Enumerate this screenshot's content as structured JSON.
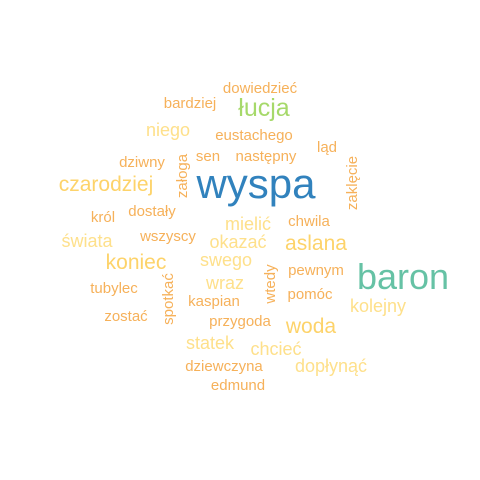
{
  "colors": {
    "dark_blue": "#3182bd",
    "teal": "#66c2a5",
    "light_green": "#a6d96a",
    "gold": "#fdd36a",
    "pale_yellow": "#fee08b",
    "orange": "#f6b15a"
  },
  "words": [
    {
      "text": "wyspa",
      "color": "dark_blue"
    },
    {
      "text": "baron",
      "color": "teal"
    },
    {
      "text": "łucja",
      "color": "light_green"
    },
    {
      "text": "czarodziej",
      "color": "gold"
    },
    {
      "text": "koniec",
      "color": "gold"
    },
    {
      "text": "woda",
      "color": "gold"
    },
    {
      "text": "aslana",
      "color": "gold"
    },
    {
      "text": "mielić",
      "color": "pale_yellow"
    },
    {
      "text": "okazać",
      "color": "pale_yellow"
    },
    {
      "text": "swego",
      "color": "pale_yellow"
    },
    {
      "text": "wraz",
      "color": "pale_yellow"
    },
    {
      "text": "niego",
      "color": "pale_yellow"
    },
    {
      "text": "świata",
      "color": "pale_yellow"
    },
    {
      "text": "kolejny",
      "color": "pale_yellow"
    },
    {
      "text": "chcieć",
      "color": "pale_yellow"
    },
    {
      "text": "statek",
      "color": "pale_yellow"
    },
    {
      "text": "dopłynąć",
      "color": "pale_yellow"
    },
    {
      "text": "dowiedzieć",
      "color": "orange"
    },
    {
      "text": "bardziej",
      "color": "orange"
    },
    {
      "text": "eustachego",
      "color": "orange"
    },
    {
      "text": "ląd",
      "color": "orange"
    },
    {
      "text": "sen",
      "color": "orange"
    },
    {
      "text": "następny",
      "color": "orange"
    },
    {
      "text": "dziwny",
      "color": "orange"
    },
    {
      "text": "załoga",
      "color": "orange"
    },
    {
      "text": "zaklęcie",
      "color": "orange"
    },
    {
      "text": "król",
      "color": "orange"
    },
    {
      "text": "dostały",
      "color": "orange"
    },
    {
      "text": "chwila",
      "color": "orange"
    },
    {
      "text": "wszyscy",
      "color": "orange"
    },
    {
      "text": "pewnym",
      "color": "orange"
    },
    {
      "text": "tubylec",
      "color": "orange"
    },
    {
      "text": "spotkać",
      "color": "orange"
    },
    {
      "text": "kaspian",
      "color": "orange"
    },
    {
      "text": "wtedy",
      "color": "orange"
    },
    {
      "text": "pomóc",
      "color": "orange"
    },
    {
      "text": "zostać",
      "color": "orange"
    },
    {
      "text": "przygoda",
      "color": "orange"
    },
    {
      "text": "dziewczyna",
      "color": "orange"
    },
    {
      "text": "edmund",
      "color": "orange"
    }
  ]
}
